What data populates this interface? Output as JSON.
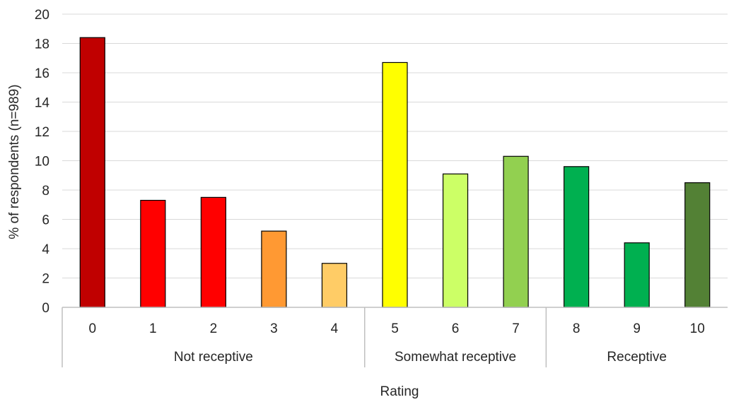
{
  "chart_data": {
    "type": "bar",
    "title": "",
    "xlabel": "Rating",
    "ylabel": "% of respondents (n=989)",
    "ylim": [
      0,
      20
    ],
    "yticks": [
      "0",
      "2",
      "4",
      "6",
      "8",
      "10",
      "12",
      "14",
      "16",
      "18",
      "20"
    ],
    "grid": true,
    "legend": "none",
    "categories": [
      "0",
      "1",
      "2",
      "3",
      "4",
      "5",
      "6",
      "7",
      "8",
      "9",
      "10"
    ],
    "values": [
      18.4,
      7.3,
      7.5,
      5.2,
      3.0,
      16.7,
      9.1,
      10.3,
      9.6,
      4.4,
      8.5
    ],
    "colors": [
      "#c00000",
      "#ff0000",
      "#ff0000",
      "#ff9933",
      "#ffcc66",
      "#ffff00",
      "#ccff66",
      "#92d050",
      "#00b050",
      "#00b050",
      "#538135"
    ],
    "groups": [
      {
        "label": "Not receptive",
        "categories": [
          "0",
          "1",
          "2",
          "3",
          "4"
        ]
      },
      {
        "label": "Somewhat receptive",
        "categories": [
          "5",
          "6",
          "7"
        ]
      },
      {
        "label": "Receptive",
        "categories": [
          "8",
          "9",
          "10"
        ]
      }
    ]
  }
}
